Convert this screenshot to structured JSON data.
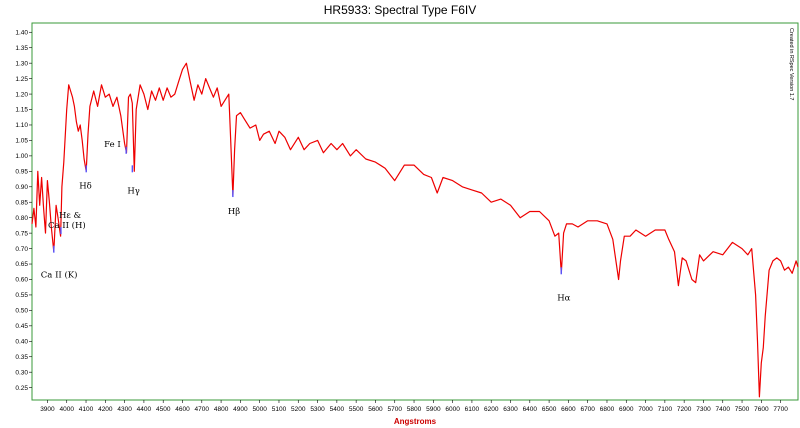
{
  "chart_data": {
    "type": "line",
    "title": "HR5933: Spectral Type F6IV",
    "xlabel": "Angstroms",
    "ylabel": "",
    "credit": "Created in RSpec Version 1.7",
    "xlim": [
      3820,
      7790
    ],
    "ylim": [
      0.21,
      1.43
    ],
    "x_ticks": [
      3900,
      4000,
      4100,
      4200,
      4300,
      4400,
      4500,
      4600,
      4700,
      4800,
      4900,
      5000,
      5100,
      5200,
      5300,
      5400,
      5500,
      5600,
      5700,
      5800,
      5900,
      6000,
      6100,
      6200,
      6300,
      6400,
      6500,
      6600,
      6700,
      6800,
      6900,
      7000,
      7100,
      7200,
      7300,
      7400,
      7500,
      7600,
      7700
    ],
    "y_ticks": [
      "0.25",
      "0.30",
      "0.35",
      "0.40",
      "0.45",
      "0.50",
      "0.55",
      "0.60",
      "0.65",
      "0.70",
      "0.75",
      "0.80",
      "0.85",
      "0.90",
      "0.95",
      "1.00",
      "1.05",
      "1.10",
      "1.15",
      "1.20",
      "1.25",
      "1.30",
      "1.35",
      "1.40"
    ],
    "grid": false,
    "line_color": "#ee0000",
    "marker_color": "#5555ff",
    "series": [
      {
        "x": [
          3820,
          3830,
          3840,
          3850,
          3860,
          3870,
          3880,
          3890,
          3900,
          3910,
          3920,
          3933,
          3945,
          3955,
          3968,
          3975,
          3985,
          4000,
          4010,
          4020,
          4030,
          4040,
          4050,
          4060,
          4070,
          4080,
          4090,
          4101,
          4110,
          4120,
          4140,
          4160,
          4180,
          4200,
          4220,
          4240,
          4260,
          4280,
          4300,
          4310,
          4320,
          4330,
          4340,
          4350,
          4360,
          4380,
          4400,
          4420,
          4440,
          4460,
          4480,
          4500,
          4520,
          4540,
          4560,
          4580,
          4600,
          4620,
          4640,
          4660,
          4680,
          4700,
          4720,
          4740,
          4760,
          4780,
          4800,
          4820,
          4840,
          4850,
          4861,
          4870,
          4880,
          4900,
          4920,
          4950,
          4980,
          5000,
          5020,
          5050,
          5080,
          5100,
          5130,
          5160,
          5200,
          5230,
          5260,
          5300,
          5330,
          5370,
          5400,
          5430,
          5470,
          5500,
          5550,
          5600,
          5650,
          5700,
          5750,
          5800,
          5850,
          5890,
          5920,
          5950,
          6000,
          6050,
          6100,
          6150,
          6200,
          6250,
          6300,
          6350,
          6400,
          6450,
          6500,
          6530,
          6550,
          6563,
          6575,
          6590,
          6620,
          6650,
          6700,
          6750,
          6800,
          6830,
          6860,
          6870,
          6890,
          6920,
          6950,
          7000,
          7050,
          7100,
          7120,
          7150,
          7170,
          7190,
          7210,
          7240,
          7260,
          7280,
          7300,
          7350,
          7400,
          7450,
          7500,
          7530,
          7550,
          7570,
          7580,
          7590,
          7600,
          7610,
          7620,
          7640,
          7660,
          7680,
          7700,
          7720,
          7740,
          7760,
          7780,
          7790
        ],
        "y": [
          0.78,
          0.83,
          0.77,
          0.95,
          0.84,
          0.93,
          0.83,
          0.75,
          0.92,
          0.85,
          0.77,
          0.69,
          0.84,
          0.8,
          0.74,
          0.9,
          0.98,
          1.15,
          1.23,
          1.21,
          1.19,
          1.16,
          1.11,
          1.08,
          1.1,
          1.05,
          0.99,
          0.95,
          1.07,
          1.16,
          1.21,
          1.16,
          1.23,
          1.19,
          1.2,
          1.16,
          1.19,
          1.13,
          1.04,
          1.01,
          1.19,
          1.2,
          1.17,
          0.95,
          1.15,
          1.23,
          1.2,
          1.15,
          1.21,
          1.18,
          1.22,
          1.18,
          1.22,
          1.19,
          1.2,
          1.24,
          1.28,
          1.3,
          1.24,
          1.18,
          1.23,
          1.2,
          1.25,
          1.22,
          1.19,
          1.22,
          1.16,
          1.18,
          1.2,
          1.05,
          0.87,
          1.02,
          1.13,
          1.14,
          1.12,
          1.09,
          1.1,
          1.05,
          1.07,
          1.08,
          1.04,
          1.08,
          1.06,
          1.02,
          1.06,
          1.02,
          1.04,
          1.05,
          1.01,
          1.04,
          1.02,
          1.04,
          1.0,
          1.02,
          0.99,
          0.98,
          0.96,
          0.92,
          0.97,
          0.97,
          0.94,
          0.93,
          0.88,
          0.93,
          0.92,
          0.9,
          0.89,
          0.88,
          0.85,
          0.86,
          0.84,
          0.8,
          0.82,
          0.82,
          0.79,
          0.74,
          0.75,
          0.62,
          0.75,
          0.78,
          0.78,
          0.77,
          0.79,
          0.79,
          0.78,
          0.73,
          0.6,
          0.66,
          0.74,
          0.74,
          0.76,
          0.74,
          0.76,
          0.76,
          0.73,
          0.69,
          0.58,
          0.67,
          0.66,
          0.6,
          0.59,
          0.68,
          0.66,
          0.69,
          0.68,
          0.72,
          0.7,
          0.68,
          0.7,
          0.55,
          0.4,
          0.22,
          0.33,
          0.38,
          0.48,
          0.63,
          0.66,
          0.67,
          0.66,
          0.63,
          0.64,
          0.62,
          0.66,
          0.64
        ]
      }
    ],
    "annotations": [
      {
        "label": "Ca II (K)",
        "x": 3933,
        "y": 0.69
      },
      {
        "label": "Hε &",
        "x": 3970,
        "y": 0.75
      },
      {
        "label": "Ca II (H)",
        "x": 3970,
        "y": 0.75
      },
      {
        "label": "Hδ",
        "x": 4101,
        "y": 0.95
      },
      {
        "label": "Fe I",
        "x": 4308,
        "y": 1.01
      },
      {
        "label": "Hγ",
        "x": 4340,
        "y": 0.95
      },
      {
        "label": "Hβ",
        "x": 4861,
        "y": 0.87
      },
      {
        "label": "Hα",
        "x": 6563,
        "y": 0.62
      }
    ]
  }
}
